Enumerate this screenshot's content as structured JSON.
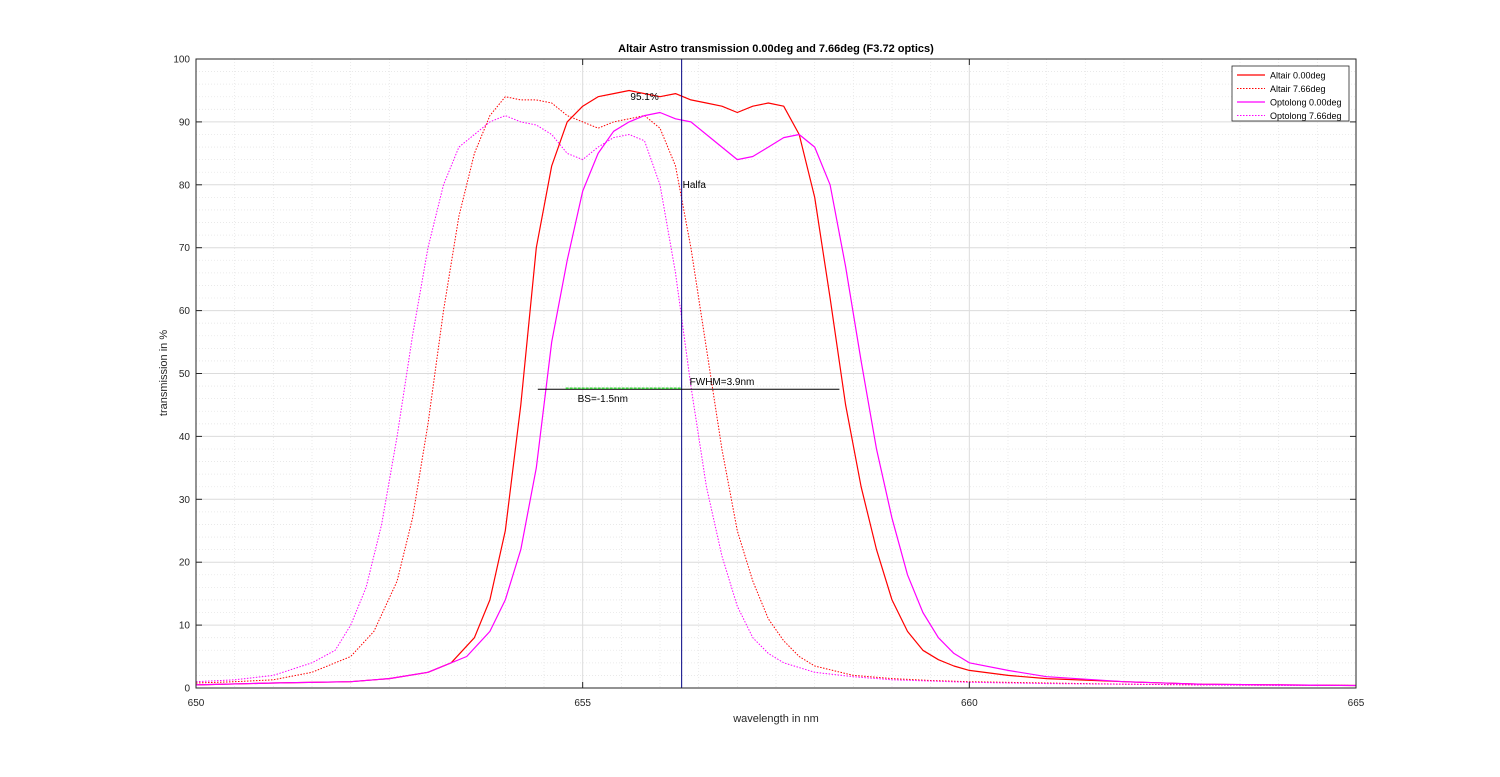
{
  "chart_data": {
    "type": "line",
    "title": "Altair Astro transmission 0.00deg and 7.66deg (F3.72 optics)",
    "xlabel": "wavelength in nm",
    "ylabel": "transmission in %",
    "xlim": [
      650,
      665
    ],
    "ylim": [
      0,
      100
    ],
    "xticks": [
      650,
      655,
      660,
      665
    ],
    "yticks": [
      0,
      10,
      20,
      30,
      40,
      50,
      60,
      70,
      80,
      90,
      100
    ],
    "grid": "major and minor",
    "legend_position": "top-right",
    "series": [
      {
        "name": "Altair 0.00deg",
        "color": "#ff0000",
        "style": "solid",
        "x": [
          650,
          651,
          652,
          652.5,
          653,
          653.3,
          653.6,
          653.8,
          654,
          654.2,
          654.4,
          654.6,
          654.8,
          655,
          655.2,
          655.4,
          655.6,
          655.8,
          656,
          656.2,
          656.4,
          656.6,
          656.8,
          657,
          657.2,
          657.4,
          657.6,
          657.8,
          658,
          658.2,
          658.4,
          658.6,
          658.8,
          659,
          659.2,
          659.4,
          659.6,
          659.8,
          660,
          660.5,
          661,
          662,
          663,
          664,
          665
        ],
        "y": [
          0.5,
          0.8,
          1.0,
          1.5,
          2.5,
          4.0,
          8.0,
          14.0,
          25.0,
          45.0,
          70.0,
          83.0,
          90.0,
          92.5,
          94.0,
          94.5,
          95.0,
          94.5,
          94.0,
          94.5,
          93.5,
          93.0,
          92.5,
          91.5,
          92.5,
          93.0,
          92.5,
          88.0,
          78.0,
          62.0,
          45.0,
          32.0,
          22.0,
          14.0,
          9.0,
          6.0,
          4.5,
          3.5,
          2.8,
          2.0,
          1.5,
          1.0,
          0.6,
          0.5,
          0.4
        ]
      },
      {
        "name": "Altair 7.66deg",
        "color": "#ff0000",
        "style": "dotted",
        "x": [
          650,
          650.5,
          651,
          651.5,
          652,
          652.3,
          652.6,
          652.8,
          653,
          653.2,
          653.4,
          653.6,
          653.8,
          654,
          654.2,
          654.4,
          654.6,
          654.8,
          655,
          655.2,
          655.4,
          655.6,
          655.8,
          656,
          656.2,
          656.4,
          656.6,
          656.8,
          657,
          657.2,
          657.4,
          657.6,
          657.8,
          658,
          658.5,
          659,
          659.5,
          660,
          661,
          662,
          663,
          664,
          665
        ],
        "y": [
          0.8,
          1.0,
          1.3,
          2.5,
          5.0,
          9.0,
          17.0,
          27.0,
          42.0,
          60.0,
          75.0,
          85.0,
          91.0,
          94.0,
          93.5,
          93.5,
          93.0,
          91.0,
          90.0,
          89.0,
          90.0,
          90.5,
          91.0,
          89.0,
          83.0,
          70.0,
          54.0,
          38.0,
          25.0,
          17.0,
          11.0,
          7.5,
          5.0,
          3.5,
          2.0,
          1.5,
          1.2,
          1.0,
          0.8,
          0.6,
          0.5,
          0.5,
          0.4
        ]
      },
      {
        "name": "Optolong 0.00deg",
        "color": "#ff00ff",
        "style": "solid",
        "x": [
          650,
          651,
          652,
          652.5,
          653,
          653.5,
          653.8,
          654,
          654.2,
          654.4,
          654.6,
          654.8,
          655,
          655.2,
          655.4,
          655.6,
          655.8,
          656,
          656.2,
          656.4,
          656.6,
          656.8,
          657,
          657.2,
          657.4,
          657.6,
          657.8,
          658,
          658.2,
          658.4,
          658.6,
          658.8,
          659,
          659.2,
          659.4,
          659.6,
          659.8,
          660,
          660.5,
          661,
          662,
          663,
          664,
          665
        ],
        "y": [
          0.5,
          0.8,
          1.0,
          1.5,
          2.5,
          5.0,
          9.0,
          14.0,
          22.0,
          35.0,
          55.0,
          68.0,
          79.0,
          85.0,
          88.5,
          90.0,
          91.0,
          91.5,
          90.5,
          90.0,
          88.0,
          86.0,
          84.0,
          84.5,
          86.0,
          87.5,
          88.0,
          86.0,
          80.0,
          67.0,
          52.0,
          38.0,
          27.0,
          18.0,
          12.0,
          8.0,
          5.5,
          4.0,
          2.8,
          1.8,
          1.0,
          0.6,
          0.5,
          0.4
        ]
      },
      {
        "name": "Optolong 7.66deg",
        "color": "#ff00ff",
        "style": "dotted",
        "x": [
          650,
          650.5,
          651,
          651.5,
          651.8,
          652,
          652.2,
          652.4,
          652.6,
          652.8,
          653,
          653.2,
          653.4,
          653.6,
          653.8,
          654,
          654.2,
          654.4,
          654.6,
          654.8,
          655,
          655.2,
          655.4,
          655.6,
          655.8,
          656,
          656.2,
          656.4,
          656.6,
          656.8,
          657,
          657.2,
          657.4,
          657.6,
          658,
          658.5,
          659,
          660,
          661,
          662,
          663,
          664,
          665
        ],
        "y": [
          1.0,
          1.3,
          2.0,
          4.0,
          6.0,
          10.0,
          16.0,
          26.0,
          40.0,
          56.0,
          70.0,
          80.0,
          86.0,
          88.0,
          90.0,
          91.0,
          90.0,
          89.5,
          88.0,
          85.0,
          84.0,
          86.0,
          87.5,
          88.0,
          87.0,
          80.0,
          66.0,
          48.0,
          32.0,
          21.0,
          13.0,
          8.0,
          5.5,
          4.0,
          2.5,
          1.8,
          1.3,
          0.9,
          0.7,
          0.6,
          0.5,
          0.4,
          0.4
        ]
      }
    ],
    "annotations": {
      "halfa": {
        "text": "Halfa",
        "x": 656.28
      },
      "peak": {
        "text": "95.1%",
        "x": 655.85,
        "y": 95.1
      },
      "fwhm": {
        "text": "FWHM=3.9nm",
        "x_start": 654.42,
        "x_end": 658.32,
        "y": 47.5
      },
      "bs": {
        "text": "BS=-1.5nm",
        "x_start": 654.78,
        "x_end": 656.28,
        "y": 47.5,
        "color": "#33cc33"
      }
    }
  }
}
